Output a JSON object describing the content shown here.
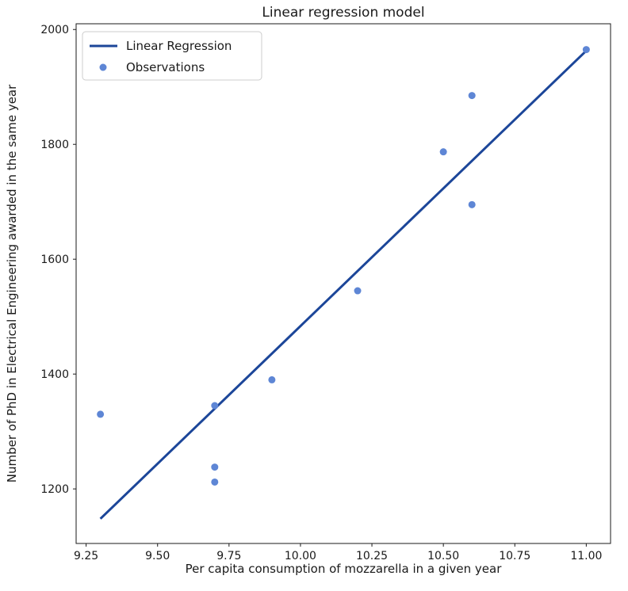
{
  "chart_data": {
    "type": "scatter",
    "title": "Linear regression model",
    "xlabel": "Per capita consumption of mozzarella in a given year",
    "ylabel": "Number of PhD in Electrical Engineering awarded in the same year",
    "xlim": [
      9.215,
      11.085
    ],
    "ylim": [
      1105,
      2010
    ],
    "grid": false,
    "legend": {
      "position": "upper left",
      "entries": [
        {
          "label": "Linear Regression",
          "swatch": "line",
          "color": "#1c4699"
        },
        {
          "label": "Observations",
          "swatch": "dot",
          "color": "#5e86d5"
        }
      ]
    },
    "x_ticks": [
      {
        "value": 9.25,
        "label": "9.25"
      },
      {
        "value": 9.5,
        "label": "9.50"
      },
      {
        "value": 9.75,
        "label": "9.75"
      },
      {
        "value": 10.0,
        "label": "10.00"
      },
      {
        "value": 10.25,
        "label": "10.25"
      },
      {
        "value": 10.5,
        "label": "10.50"
      },
      {
        "value": 10.75,
        "label": "10.75"
      },
      {
        "value": 11.0,
        "label": "11.00"
      }
    ],
    "y_ticks": [
      {
        "value": 1200,
        "label": "1200"
      },
      {
        "value": 1400,
        "label": "1400"
      },
      {
        "value": 1600,
        "label": "1600"
      },
      {
        "value": 1800,
        "label": "1800"
      },
      {
        "value": 2000,
        "label": "2000"
      }
    ],
    "series": [
      {
        "name": "Linear Regression",
        "kind": "line",
        "color": "#1c4699",
        "line_width": 3,
        "points": [
          [
            9.3,
            1148
          ],
          [
            11.0,
            1963
          ]
        ]
      },
      {
        "name": "Observations",
        "kind": "scatter",
        "color": "#5e86d5",
        "marker_radius": 4.5,
        "points": [
          [
            9.3,
            1330
          ],
          [
            9.7,
            1345
          ],
          [
            9.7,
            1238
          ],
          [
            9.7,
            1212
          ],
          [
            9.9,
            1390
          ],
          [
            10.2,
            1545
          ],
          [
            10.5,
            1787
          ],
          [
            10.6,
            1885
          ],
          [
            10.6,
            1695
          ],
          [
            11.0,
            1965
          ]
        ]
      }
    ]
  }
}
